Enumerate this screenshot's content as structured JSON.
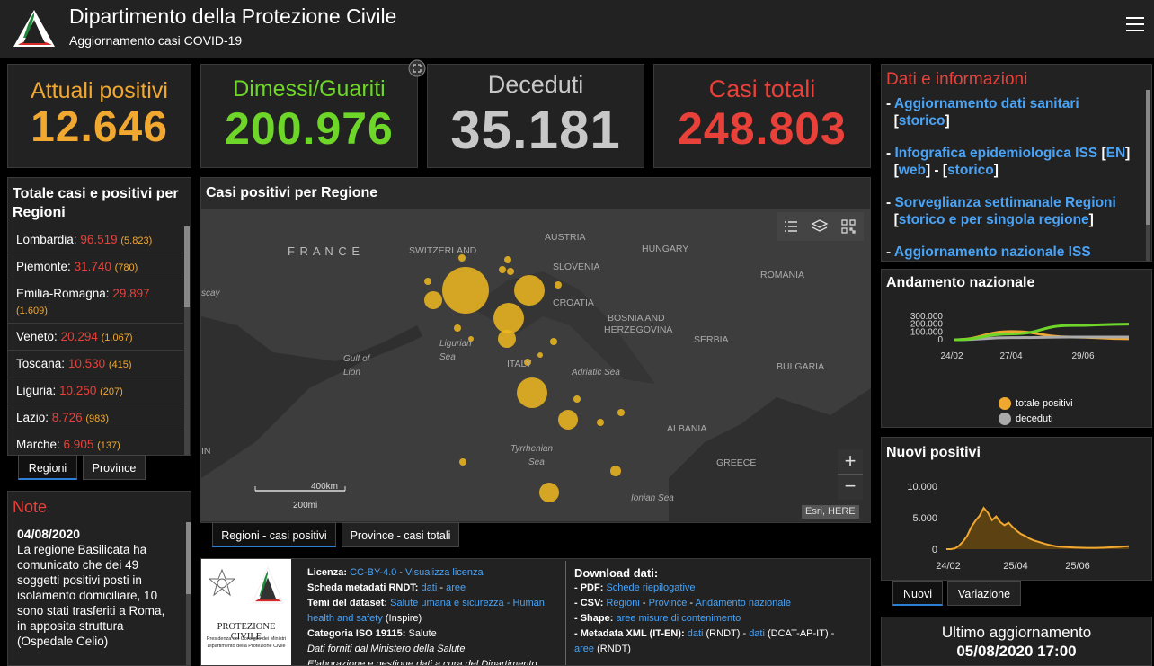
{
  "header": {
    "title": "Dipartimento della Protezione Civile",
    "subtitle": "Aggiornamento casi COVID-19"
  },
  "kpis": {
    "active": {
      "label": "Attuali positivi",
      "value": "12.646",
      "color": "#f0a830"
    },
    "recovered": {
      "label": "Dimessi/Guariti",
      "value": "200.976",
      "color": "#6dd629"
    },
    "deaths": {
      "label": "Deceduti",
      "value": "35.181",
      "color": "#c8c8c8"
    },
    "total": {
      "label": "Casi totali",
      "value": "248.803",
      "color": "#e8413a"
    }
  },
  "regions": {
    "title": "Totale casi e positivi per Regioni",
    "items": [
      {
        "name": "Lombardia:",
        "total": "96.519",
        "positive": "(5.823)"
      },
      {
        "name": "Piemonte:",
        "total": "31.740",
        "positive": "(780)"
      },
      {
        "name": "Emilia-Romagna:",
        "total": "29.897",
        "positive": "(1.609)"
      },
      {
        "name": "Veneto:",
        "total": "20.294",
        "positive": "(1.067)"
      },
      {
        "name": "Toscana:",
        "total": "10.530",
        "positive": "(415)"
      },
      {
        "name": "Liguria:",
        "total": "10.250",
        "positive": "(207)"
      },
      {
        "name": "Lazio:",
        "total": "8.726",
        "positive": "(983)"
      },
      {
        "name": "Marche:",
        "total": "6.905",
        "positive": "(137)"
      }
    ],
    "tabs": [
      "Regioni",
      "Province"
    ]
  },
  "notes": {
    "title": "Note",
    "date": "04/08/2020",
    "lines": [
      "La regione Basilicata ha",
      "comunicato che dei 49",
      "soggetti positivi posti in",
      "isolamento domiciliare, 10",
      "sono stati trasferiti a Roma,",
      "in apposita struttura",
      "(Ospedale Celio)"
    ]
  },
  "map": {
    "title": "Casi positivi per Regione",
    "tabs": [
      "Regioni - casi positivi",
      "Province - casi totali"
    ],
    "countries": [
      "F R A N C E",
      "SWITZERLAND",
      "AUSTRIA",
      "HUNGARY",
      "SLOVENIA",
      "CROATIA",
      "ROMANIA",
      "BOSNIA AND",
      "HERZEGOVINA",
      "SERBIA",
      "BULGARIA",
      "ITALY",
      "ALBANIA",
      "GREECE"
    ],
    "seas": [
      "Ligurian",
      "Sea",
      "Gulf of",
      "Lion",
      "Adriatic Sea",
      "Tyrrhenian",
      "Sea",
      "Ionian Sea"
    ],
    "edge_labels": [
      "scay",
      "IN"
    ],
    "scale": {
      "km": "400km",
      "mi": "200mi"
    },
    "attribution": "Esri, HERE",
    "zoom_in": "+",
    "zoom_out": "−"
  },
  "info": {
    "title": "Dati e informazioni",
    "links": {
      "l1": "Aggiornamento dati sanitari",
      "storico": "storico",
      "l2": "Infografica epidemiologica ISS",
      "en": "EN",
      "web": "web",
      "l3": "Sorveglianza settimanale Regioni",
      "l3b": "storico e per singola regione",
      "l4": "Aggiornamento nazionale ISS"
    }
  },
  "trend": {
    "title": "Andamento nazionale",
    "legend": [
      "totale positivi",
      "deceduti"
    ]
  },
  "new_cases": {
    "title": "Nuovi positivi",
    "tabs": [
      "Nuovi",
      "Variazione"
    ]
  },
  "footer": {
    "logo_text": "PROTEZIONE CIVILE",
    "logo_sub1": "Presidenza del Consiglio dei Ministri",
    "logo_sub2": "Dipartimento della Protezione Civile",
    "licenza_label": "Licenza:",
    "licenza_val": "CC-BY-4.0",
    "licenza_link": "Visualizza licenza",
    "scheda_label": "Scheda metadati RNDT:",
    "dati": "dati",
    "aree": "aree",
    "temi_label": "Temi del dataset:",
    "temi_val1": "Salute umana e sicurezza - Human",
    "temi_val2": "health and safety",
    "inspire": "(Inspire)",
    "iso_label": "Categoria ISO 19115:",
    "iso_val": "Salute",
    "fonte": "Dati forniti dal Ministero della Salute",
    "fonte2": "Elaborazione e gestione dati a cura del Dipartimento",
    "download_title": "Download dati:",
    "pdf_label": "- PDF:",
    "pdf_val": "Schede riepilogative",
    "csv_label": "- CSV:",
    "csv_regioni": "Regioni",
    "csv_province": "Province",
    "csv_andamento": "Andamento nazionale",
    "shape_label": "- Shape:",
    "shape_val": "aree misure di contenimento",
    "xml_label": "- Metadata XML (IT-EN):",
    "rndt": "(RNDT)",
    "dcat": "(DCAT-AP-IT)"
  },
  "update": {
    "label": "Ultimo aggiornamento",
    "date": "05/08/2020 17:00"
  },
  "chart_data": [
    {
      "type": "line",
      "title": "Andamento nazionale",
      "x": [
        "24/02",
        "27/04",
        "29/06",
        "05/08"
      ],
      "series": [
        {
          "name": "totale positivi",
          "color": "#f0a830",
          "values": [
            0,
            105000,
            35000,
            12646
          ]
        },
        {
          "name": "deceduti",
          "color": "#aaaaaa",
          "values": [
            0,
            27000,
            34700,
            35181
          ]
        },
        {
          "color": "#6dd629",
          "values": [
            0,
            75000,
            183000,
            200976
          ]
        }
      ],
      "yticks": [
        "300.000",
        "200.000",
        "100.000",
        "0"
      ],
      "xticks": [
        "24/02",
        "27/04",
        "29/06"
      ],
      "ylim": [
        0,
        300000
      ]
    },
    {
      "type": "area",
      "title": "Nuovi positivi",
      "color": "#f0a830",
      "values": [
        0,
        0,
        100,
        500,
        1200,
        2100,
        3500,
        4500,
        5300,
        6550,
        5800,
        4600,
        5200,
        4300,
        3800,
        4200,
        3500,
        2900,
        2400,
        2100,
        1700,
        1400,
        1200,
        1000,
        800,
        650,
        500,
        400,
        350,
        320,
        280,
        250,
        230,
        220,
        200,
        190,
        200,
        220,
        240,
        270,
        300,
        330,
        380,
        420,
        470
      ],
      "yticks": [
        "10.000",
        "5.000",
        "0"
      ],
      "xticks": [
        "24/02",
        "25/04",
        "25/06"
      ],
      "ylim": [
        0,
        10000
      ]
    }
  ]
}
